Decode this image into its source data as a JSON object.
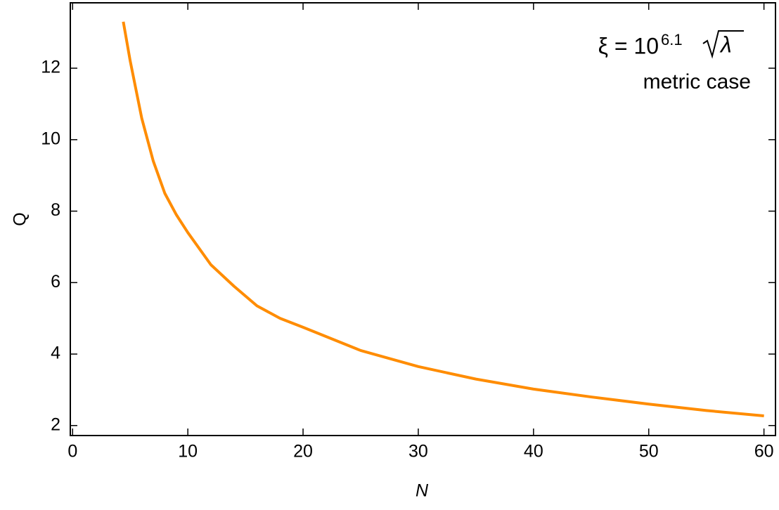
{
  "chart_data": {
    "type": "line",
    "xlabel": "N",
    "ylabel": "Q",
    "annotation": {
      "base": "ξ = 10",
      "exponent": "6.1",
      "radicand": "λ"
    },
    "annotation2": "metric case",
    "x": [
      4.4,
      5,
      6,
      7,
      8,
      9,
      10,
      12,
      14,
      16,
      18,
      20,
      25,
      30,
      35,
      40,
      45,
      50,
      55,
      60
    ],
    "series": [
      {
        "name": "Q",
        "color": "#ff8c00",
        "values": [
          13.3,
          12.2,
          10.6,
          9.4,
          8.5,
          7.9,
          7.4,
          6.5,
          5.9,
          5.35,
          5.0,
          4.75,
          4.1,
          3.65,
          3.3,
          3.02,
          2.8,
          2.6,
          2.42,
          2.27
        ]
      }
    ],
    "xlim": [
      -0.2,
      61
    ],
    "ylim": [
      1.72,
      13.83
    ],
    "xticks": [
      0,
      10,
      20,
      30,
      40,
      50,
      60
    ],
    "yticks": [
      2,
      4,
      6,
      8,
      10,
      12
    ]
  }
}
